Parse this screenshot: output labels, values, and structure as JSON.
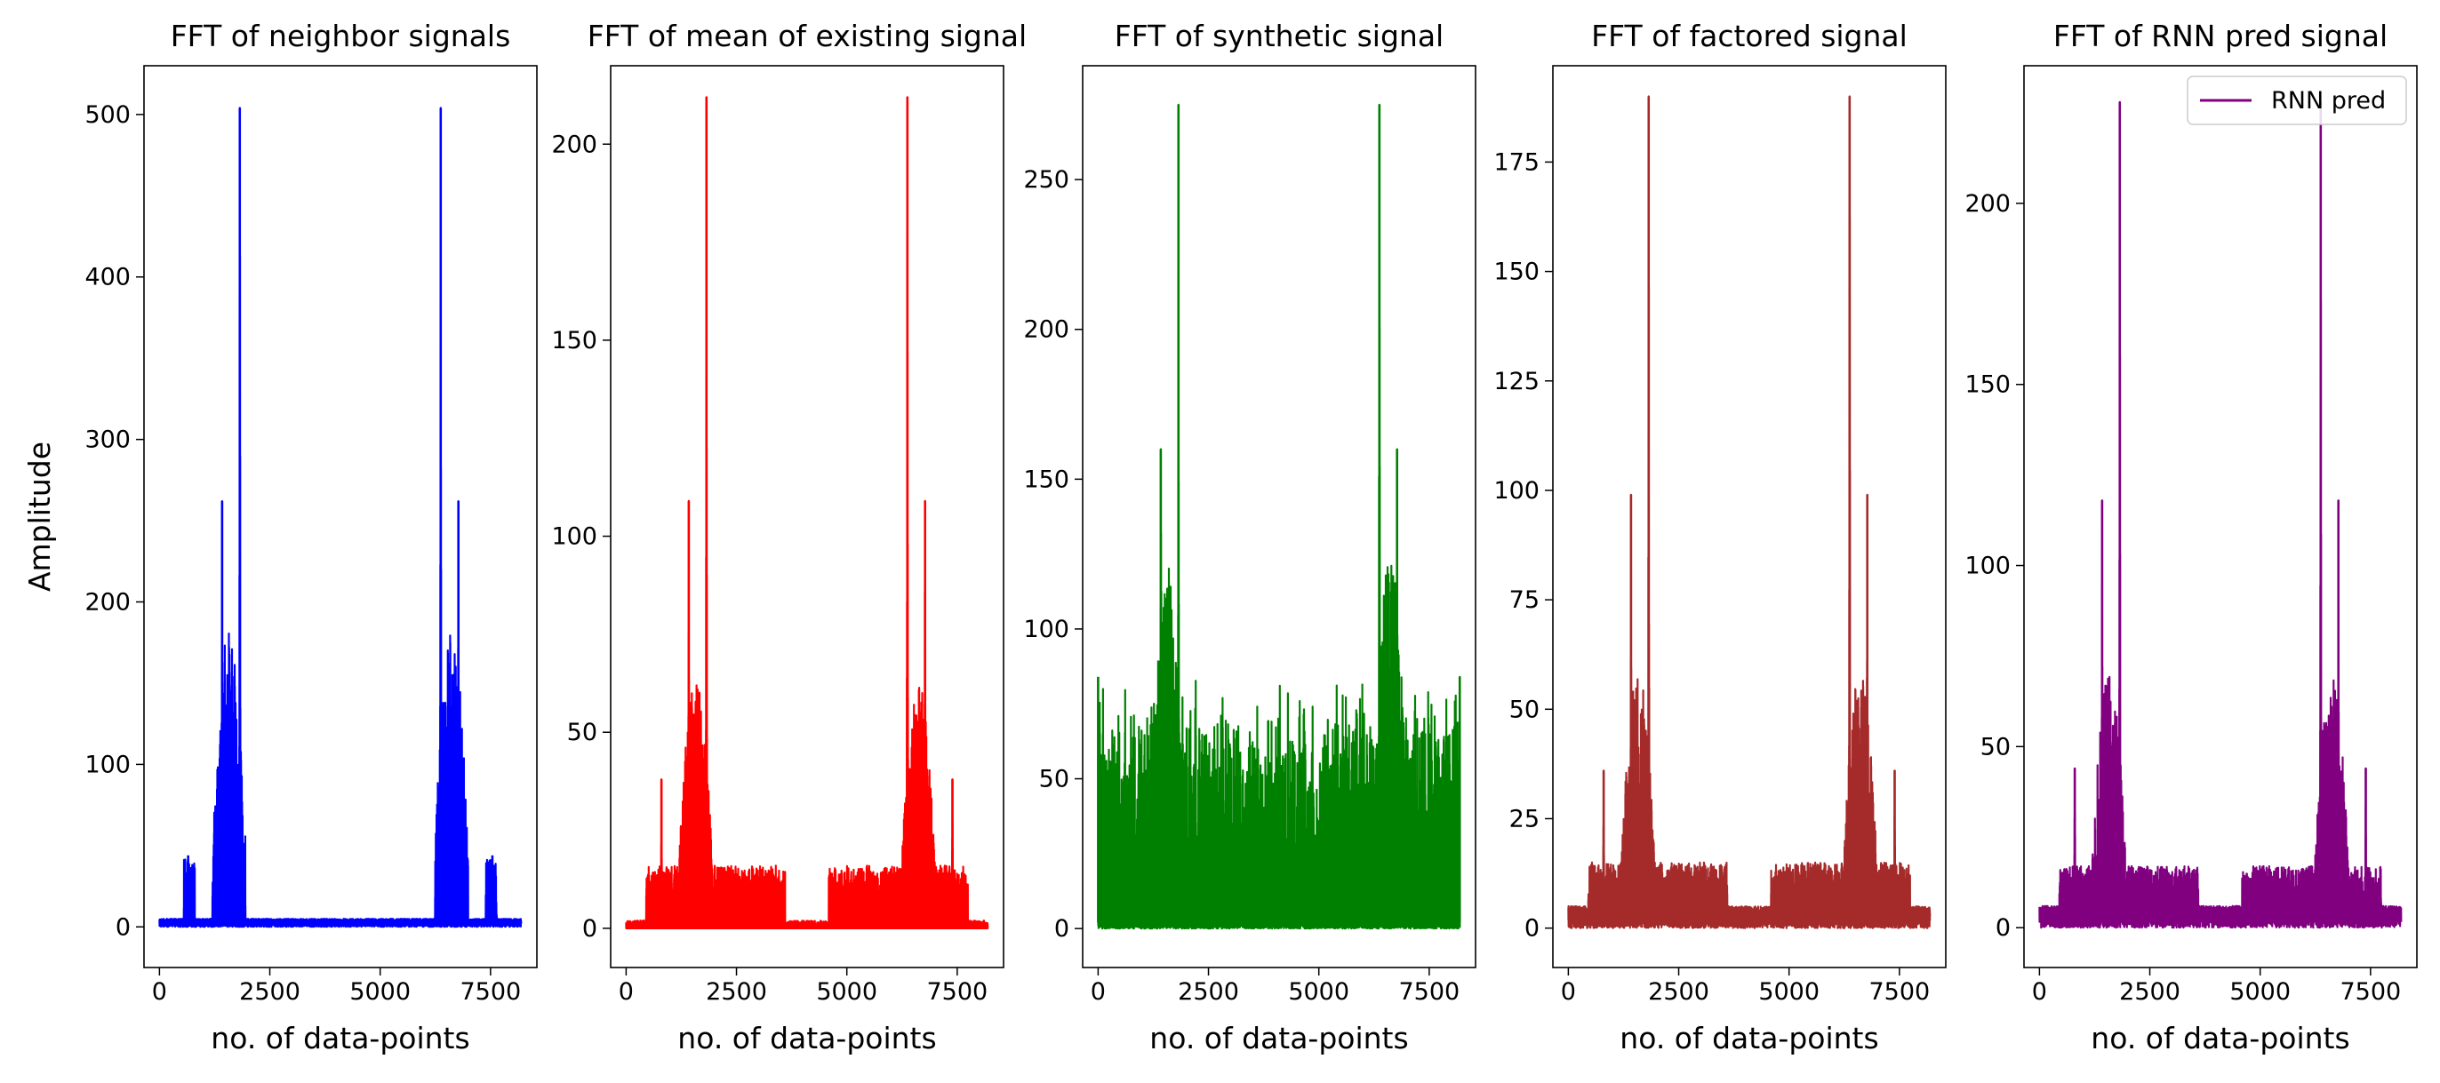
{
  "chart_data": [
    {
      "type": "line",
      "title": "FFT of neighbor signals",
      "xlabel": "no. of data-points",
      "ylabel": "Amplitude",
      "color": "#0000ff",
      "xlim": [
        -350,
        8550
      ],
      "ylim": [
        -25,
        530
      ],
      "xticks": [
        0,
        2500,
        5000,
        7500
      ],
      "xtick_labels": [
        "0",
        "2500",
        "5000",
        "7500"
      ],
      "yticks": [
        0,
        100,
        200,
        300,
        400,
        500
      ],
      "ytick_labels": [
        "0",
        "100",
        "200",
        "300",
        "400",
        "500"
      ],
      "spectrum": {
        "n_points": 8192,
        "peaks": [
          {
            "x": 1820,
            "amplitude": 504
          },
          {
            "x": 1420,
            "amplitude": 262
          },
          {
            "x": 1720,
            "amplitude": 138
          },
          {
            "x": 650,
            "amplitude": 44
          }
        ],
        "band_level": 130,
        "band_range": [
          1200,
          1950
        ],
        "shoulder_level": 42,
        "shoulder_range": [
          550,
          800
        ],
        "floor_level": 3
      }
    },
    {
      "type": "line",
      "title": "FFT of mean of existing signal",
      "xlabel": "no. of data-points",
      "ylabel": "",
      "color": "#ff0000",
      "xlim": [
        -350,
        8550
      ],
      "ylim": [
        -10,
        220
      ],
      "xticks": [
        0,
        2500,
        5000,
        7500
      ],
      "xtick_labels": [
        "0",
        "2500",
        "5000",
        "7500"
      ],
      "yticks": [
        0,
        50,
        100,
        150,
        200
      ],
      "ytick_labels": [
        "0",
        "50",
        "100",
        "150",
        "200"
      ],
      "spectrum": {
        "n_points": 8192,
        "peaks": [
          {
            "x": 1820,
            "amplitude": 212
          },
          {
            "x": 1420,
            "amplitude": 109
          },
          {
            "x": 800,
            "amplitude": 38
          }
        ],
        "band_level": 45,
        "band_range": [
          1200,
          1950
        ],
        "plateau_level": 14,
        "plateau_range": [
          450,
          3600
        ],
        "floor_level": 0
      }
    },
    {
      "type": "line",
      "title": "FFT of synthetic signal",
      "xlabel": "no. of data-points",
      "ylabel": "",
      "color": "#008000",
      "xlim": [
        -350,
        8550
      ],
      "ylim": [
        -13,
        288
      ],
      "xticks": [
        0,
        2500,
        5000,
        7500
      ],
      "xtick_labels": [
        "0",
        "2500",
        "5000",
        "7500"
      ],
      "yticks": [
        0,
        50,
        100,
        150,
        200,
        250
      ],
      "ytick_labels": [
        "0",
        "50",
        "100",
        "150",
        "200",
        "250"
      ],
      "spectrum": {
        "n_points": 8192,
        "peaks": [
          {
            "x": 1820,
            "amplitude": 275
          },
          {
            "x": 1420,
            "amplitude": 160
          },
          {
            "x": 0,
            "amplitude": 84
          }
        ],
        "band_level": 90,
        "band_range": [
          1200,
          1950
        ],
        "noise_level": 55,
        "floor_level": 2
      }
    },
    {
      "type": "line",
      "title": "FFT of factored signal",
      "xlabel": "no. of data-points",
      "ylabel": "",
      "color": "#a52a2a",
      "xlim": [
        -350,
        8550
      ],
      "ylim": [
        -9,
        197
      ],
      "xticks": [
        0,
        2500,
        5000,
        7500
      ],
      "xtick_labels": [
        "0",
        "2500",
        "5000",
        "7500"
      ],
      "yticks": [
        0,
        25,
        50,
        75,
        100,
        125,
        150,
        175
      ],
      "ytick_labels": [
        "0",
        "25",
        "50",
        "75",
        "100",
        "125",
        "150",
        "175"
      ],
      "spectrum": {
        "n_points": 8192,
        "peaks": [
          {
            "x": 1820,
            "amplitude": 190
          },
          {
            "x": 1420,
            "amplitude": 99
          },
          {
            "x": 800,
            "amplitude": 36
          }
        ],
        "band_level": 42,
        "band_range": [
          1200,
          1950
        ],
        "plateau_level": 13,
        "plateau_range": [
          450,
          3600
        ],
        "floor_level": 3
      }
    },
    {
      "type": "line",
      "title": "FFT of RNN pred signal",
      "xlabel": "no. of data-points",
      "ylabel": "",
      "color": "#800080",
      "legend": {
        "label": "RNN pred",
        "position": "top-right"
      },
      "xlim": [
        -350,
        8550
      ],
      "ylim": [
        -11,
        238
      ],
      "xticks": [
        0,
        2500,
        5000,
        7500
      ],
      "xtick_labels": [
        "0",
        "2500",
        "5000",
        "7500"
      ],
      "yticks": [
        0,
        50,
        100,
        150,
        200
      ],
      "ytick_labels": [
        "0",
        "50",
        "100",
        "150",
        "200"
      ],
      "spectrum": {
        "n_points": 8192,
        "peaks": [
          {
            "x": 1820,
            "amplitude": 228
          },
          {
            "x": 1420,
            "amplitude": 118
          },
          {
            "x": 800,
            "amplitude": 44
          }
        ],
        "band_level": 50,
        "band_range": [
          1200,
          1950
        ],
        "plateau_level": 15,
        "plateau_range": [
          450,
          3600
        ],
        "floor_level": 4
      }
    }
  ]
}
